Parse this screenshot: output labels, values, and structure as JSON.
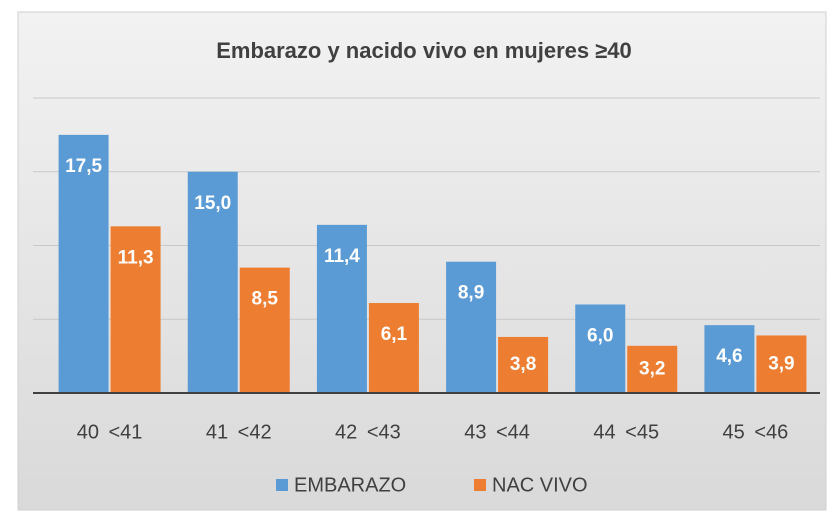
{
  "chart_data": {
    "type": "bar",
    "title": "Embarazo y nacido vivo en mujeres ≥40",
    "categories": [
      "40 <41",
      "41 <42",
      "42 <43",
      "43 <44",
      "44 <45",
      "45 <46"
    ],
    "series": [
      {
        "name": "EMBARAZO",
        "color": "#5b9bd5",
        "values": [
          17.5,
          15.0,
          11.4,
          8.9,
          6.0,
          4.6
        ],
        "value_labels": [
          "17,5",
          "15,0",
          "11,4",
          "8,9",
          "6,0",
          "4,6"
        ]
      },
      {
        "name": "NAC VIVO",
        "color": "#ed7d31",
        "values": [
          11.3,
          8.5,
          6.1,
          3.8,
          3.2,
          3.9
        ],
        "value_labels": [
          "11,3",
          "8,5",
          "6,1",
          "3,8",
          "3,2",
          "3,9"
        ]
      }
    ],
    "ylim": [
      0,
      20
    ],
    "yticks": [
      0,
      5,
      10,
      15,
      20
    ],
    "grid": true
  }
}
